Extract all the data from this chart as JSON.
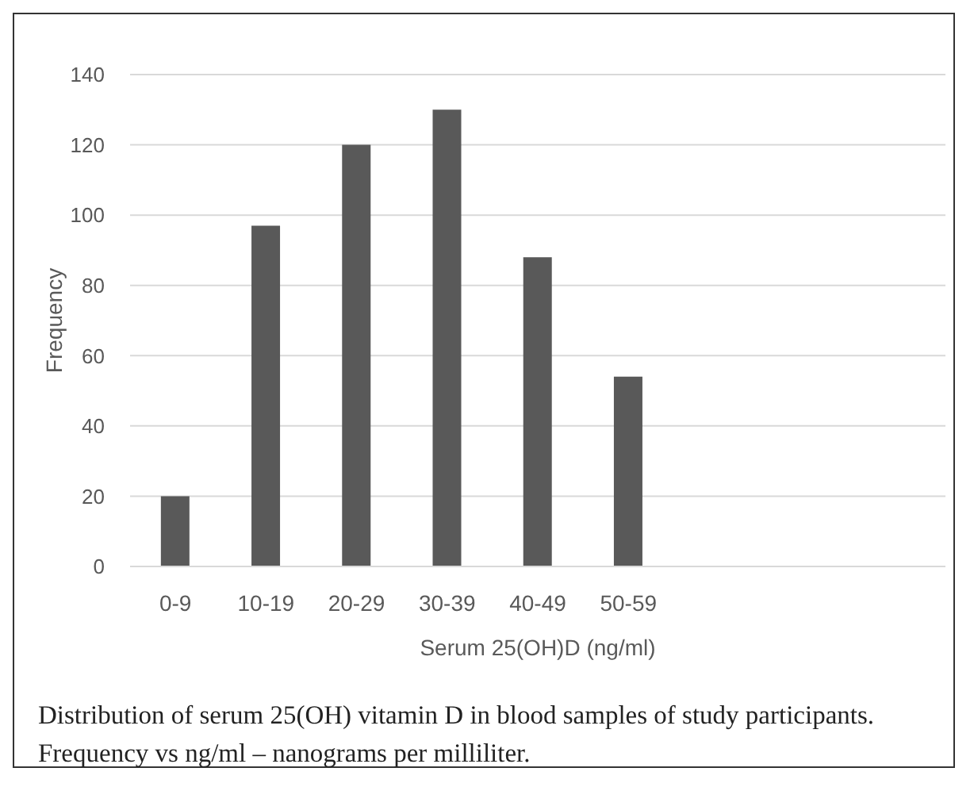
{
  "chart_data": {
    "type": "bar",
    "xlabel": "Serum 25(OH)D  (ng/ml)",
    "ylabel": "Frequency",
    "categories": [
      "0-9",
      "10-19",
      "20-29",
      "30-39",
      "40-49",
      "50-59",
      null,
      null,
      null
    ],
    "values": [
      20,
      97,
      120,
      130,
      88,
      54,
      null,
      null,
      null
    ],
    "color": "#595959",
    "ylim": [
      0,
      140
    ],
    "yticks": [
      0,
      20,
      40,
      60,
      80,
      100,
      120,
      140
    ],
    "grid": "y",
    "annotations": [
      "Distribution of serum 25(OH) vitamin D in blood samples of study participants. Frequency vs ng/ml – nanograms per milliliter."
    ]
  }
}
